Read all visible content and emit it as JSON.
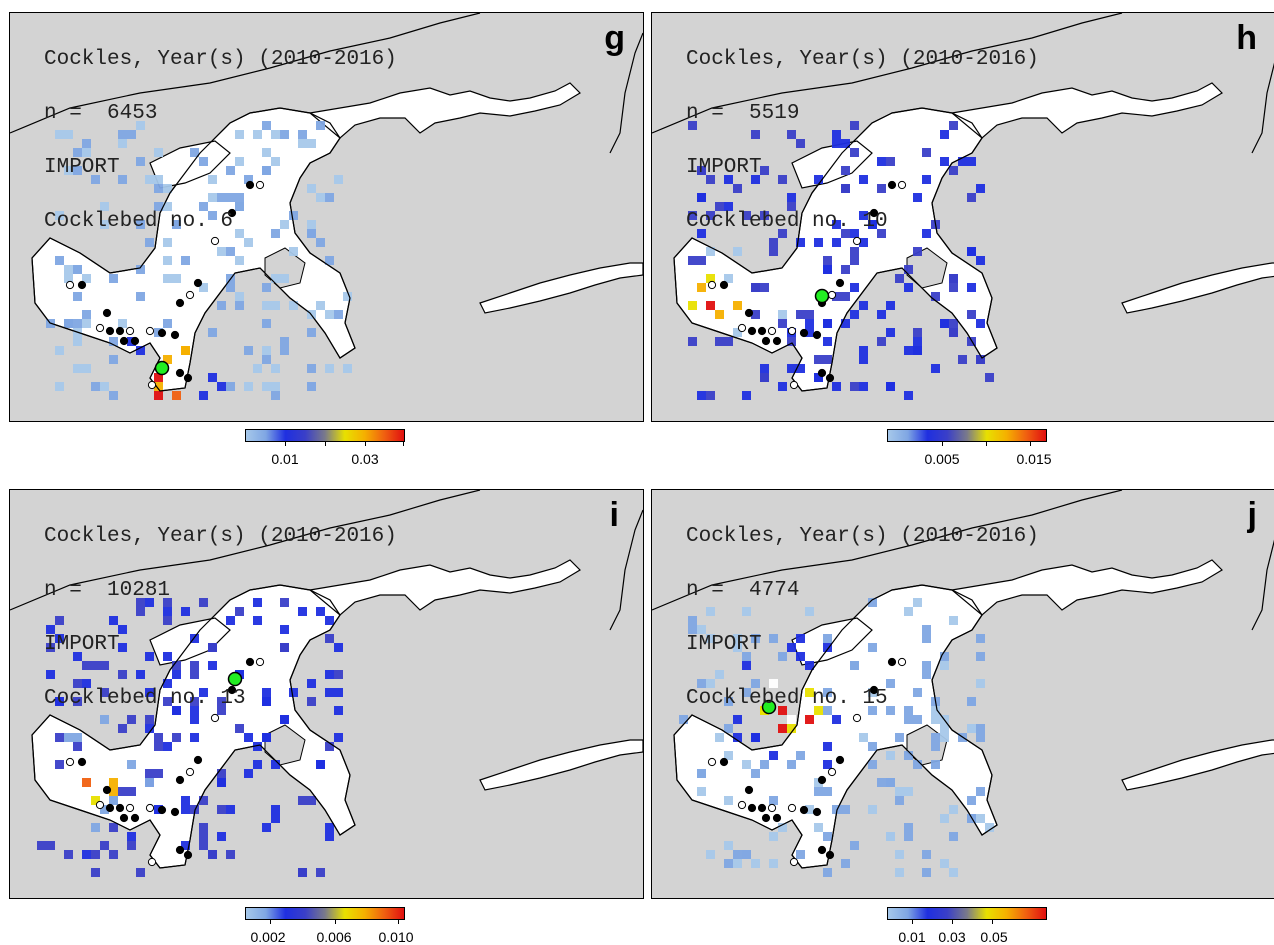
{
  "panels": [
    {
      "id": "g",
      "label": "g",
      "header": [
        "Cockles, Year(s) (2010-2016)",
        "n =  6453",
        "IMPORT",
        "Cocklebed no. 6"
      ],
      "colorbar": {
        "ticks": [
          "0.01",
          "0.03"
        ]
      }
    },
    {
      "id": "h",
      "label": "h",
      "header": [
        "Cockles, Year(s) (2010-2016)",
        "n =  5519",
        "IMPORT",
        "Cocklebed no. 10"
      ],
      "colorbar": {
        "ticks": [
          "0.005",
          "0.015"
        ]
      }
    },
    {
      "id": "i",
      "label": "i",
      "header": [
        "Cockles, Year(s) (2010-2016)",
        "n =  10281",
        "IMPORT",
        "Cocklebed no. 13"
      ],
      "colorbar": {
        "ticks": [
          "0.002",
          "0.006",
          "0.010"
        ]
      }
    },
    {
      "id": "j",
      "label": "j",
      "header": [
        "Cockles, Year(s) (2010-2016)",
        "n =  4774",
        "IMPORT",
        "Cocklebed no. 15"
      ],
      "colorbar": {
        "ticks": [
          "0.01",
          "0.03",
          "0.05"
        ]
      }
    }
  ],
  "colors": {
    "land": "#d3d3d3",
    "water": "#ffffff",
    "ramp": [
      "#a6c8ea",
      "#7fa6e3",
      "#1f2fe0",
      "#3a3fc8",
      "#7a7a8a",
      "#e8e000",
      "#f5b000",
      "#f06010",
      "#e01010"
    ],
    "source_marker": "#22ee22"
  }
}
